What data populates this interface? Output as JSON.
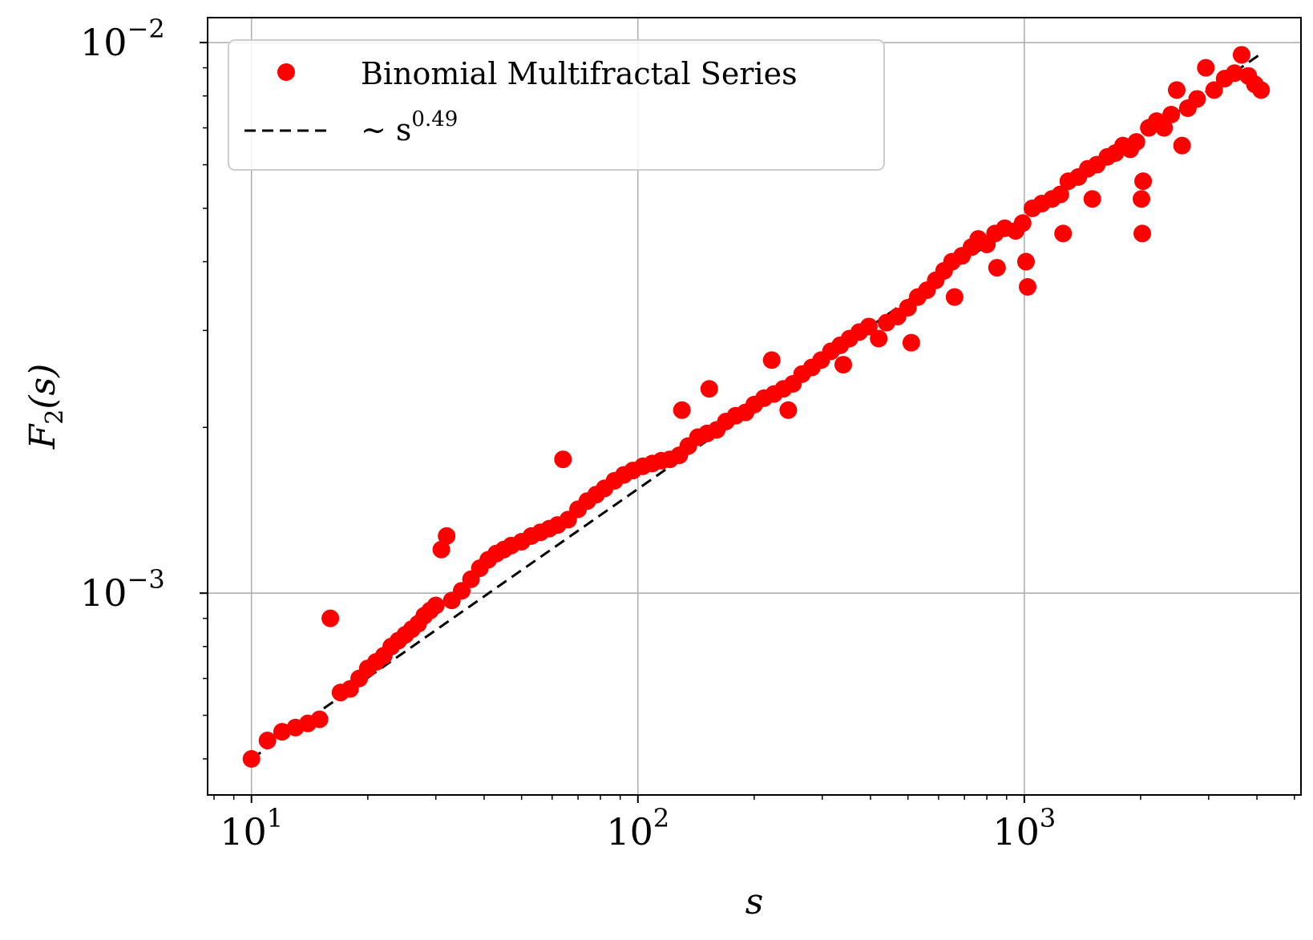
{
  "chart_data": {
    "type": "scatter",
    "xscale": "log",
    "yscale": "log",
    "xlim": [
      7.7,
      5200
    ],
    "ylim": [
      0.00043,
      0.0111
    ],
    "grid": true,
    "legend_position": "top-left",
    "xlabel": "s",
    "ylabel_main": "F",
    "ylabel_sub": "2",
    "ylabel_rest": "(s)",
    "x_ticks": [
      {
        "value": 10,
        "base": "10",
        "exp": "1"
      },
      {
        "value": 100,
        "base": "10",
        "exp": "2"
      },
      {
        "value": 1000,
        "base": "10",
        "exp": "3"
      }
    ],
    "y_ticks": [
      {
        "value": 0.001,
        "base": "10",
        "exp": "−3"
      },
      {
        "value": 0.01,
        "base": "10",
        "exp": "−2"
      }
    ],
    "series": [
      {
        "name": "Binomial Multifractal Series",
        "kind": "scatter",
        "color": "#ff0000",
        "points": [
          [
            10,
            0.0005
          ],
          [
            11,
            0.00054
          ],
          [
            12,
            0.00056
          ],
          [
            13,
            0.00057
          ],
          [
            14,
            0.00058
          ],
          [
            15,
            0.00059
          ],
          [
            16,
            0.0009
          ],
          [
            17,
            0.00066
          ],
          [
            18,
            0.00067
          ],
          [
            19,
            0.0007
          ],
          [
            20,
            0.00073
          ],
          [
            21,
            0.00075
          ],
          [
            22,
            0.00077
          ],
          [
            23,
            0.0008
          ],
          [
            24,
            0.00082
          ],
          [
            25,
            0.00084
          ],
          [
            26,
            0.00086
          ],
          [
            27,
            0.00088
          ],
          [
            28,
            0.00091
          ],
          [
            29,
            0.00093
          ],
          [
            30,
            0.00095
          ],
          [
            31,
            0.0012
          ],
          [
            32,
            0.00127
          ],
          [
            33,
            0.00097
          ],
          [
            35,
            0.00101
          ],
          [
            37,
            0.00106
          ],
          [
            39,
            0.00111
          ],
          [
            41,
            0.00115
          ],
          [
            43,
            0.00118
          ],
          [
            45,
            0.0012
          ],
          [
            47,
            0.00122
          ],
          [
            50,
            0.00124
          ],
          [
            53,
            0.00127
          ],
          [
            56,
            0.00129
          ],
          [
            59,
            0.00131
          ],
          [
            62,
            0.00133
          ],
          [
            64,
            0.00175
          ],
          [
            66,
            0.00136
          ],
          [
            70,
            0.00142
          ],
          [
            74,
            0.00147
          ],
          [
            78,
            0.00151
          ],
          [
            82,
            0.00155
          ],
          [
            87,
            0.0016
          ],
          [
            92,
            0.00164
          ],
          [
            97,
            0.00167
          ],
          [
            103,
            0.0017
          ],
          [
            109,
            0.00172
          ],
          [
            115,
            0.00174
          ],
          [
            121,
            0.00175
          ],
          [
            128,
            0.00178
          ],
          [
            135,
            0.00185
          ],
          [
            130,
            0.00215
          ],
          [
            143,
            0.00192
          ],
          [
            151,
            0.00195
          ],
          [
            153,
            0.00235
          ],
          [
            160,
            0.00198
          ],
          [
            169,
            0.00205
          ],
          [
            179,
            0.0021
          ],
          [
            190,
            0.00213
          ],
          [
            200,
            0.0022
          ],
          [
            212,
            0.00226
          ],
          [
            222,
            0.00265
          ],
          [
            225,
            0.0023
          ],
          [
            238,
            0.00235
          ],
          [
            245,
            0.00215
          ],
          [
            252,
            0.0024
          ],
          [
            266,
            0.0025
          ],
          [
            282,
            0.00257
          ],
          [
            298,
            0.00265
          ],
          [
            316,
            0.00275
          ],
          [
            334,
            0.00282
          ],
          [
            340,
            0.0026
          ],
          [
            353,
            0.0029
          ],
          [
            374,
            0.00298
          ],
          [
            396,
            0.00305
          ],
          [
            420,
            0.0029
          ],
          [
            440,
            0.0031
          ],
          [
            470,
            0.00318
          ],
          [
            500,
            0.0033
          ],
          [
            510,
            0.00285
          ],
          [
            530,
            0.00345
          ],
          [
            560,
            0.00355
          ],
          [
            590,
            0.0037
          ],
          [
            620,
            0.00385
          ],
          [
            650,
            0.004
          ],
          [
            660,
            0.00345
          ],
          [
            690,
            0.0041
          ],
          [
            730,
            0.00425
          ],
          [
            760,
            0.0044
          ],
          [
            800,
            0.0043
          ],
          [
            840,
            0.0045
          ],
          [
            850,
            0.0039
          ],
          [
            890,
            0.0046
          ],
          [
            950,
            0.00455
          ],
          [
            990,
            0.0047
          ],
          [
            1010,
            0.004
          ],
          [
            1020,
            0.0036
          ],
          [
            1050,
            0.005
          ],
          [
            1110,
            0.0051
          ],
          [
            1180,
            0.0052
          ],
          [
            1240,
            0.0053
          ],
          [
            1260,
            0.0045
          ],
          [
            1300,
            0.0056
          ],
          [
            1380,
            0.0057
          ],
          [
            1460,
            0.0059
          ],
          [
            1500,
            0.0052
          ],
          [
            1540,
            0.006
          ],
          [
            1640,
            0.0062
          ],
          [
            1720,
            0.0063
          ],
          [
            1800,
            0.0065
          ],
          [
            1880,
            0.0064
          ],
          [
            1950,
            0.0066
          ],
          [
            2020,
            0.0045
          ],
          [
            2010,
            0.0052
          ],
          [
            2030,
            0.0056
          ],
          [
            2100,
            0.007
          ],
          [
            2200,
            0.0072
          ],
          [
            2300,
            0.007
          ],
          [
            2400,
            0.0074
          ],
          [
            2480,
            0.0082
          ],
          [
            2560,
            0.0065
          ],
          [
            2650,
            0.0076
          ],
          [
            2800,
            0.0079
          ],
          [
            2950,
            0.009
          ],
          [
            3100,
            0.0082
          ],
          [
            3300,
            0.0086
          ],
          [
            3500,
            0.0088
          ],
          [
            3650,
            0.0095
          ],
          [
            3800,
            0.0087
          ],
          [
            3950,
            0.0084
          ],
          [
            4100,
            0.0082
          ]
        ]
      },
      {
        "name": "∼ s",
        "name_exp": "0.49",
        "kind": "line",
        "style": "dashed",
        "color": "#000000",
        "exponent": 0.49,
        "x": [
          10,
          4100
        ],
        "y": [
          0.0005,
          0.00955
        ]
      }
    ]
  }
}
